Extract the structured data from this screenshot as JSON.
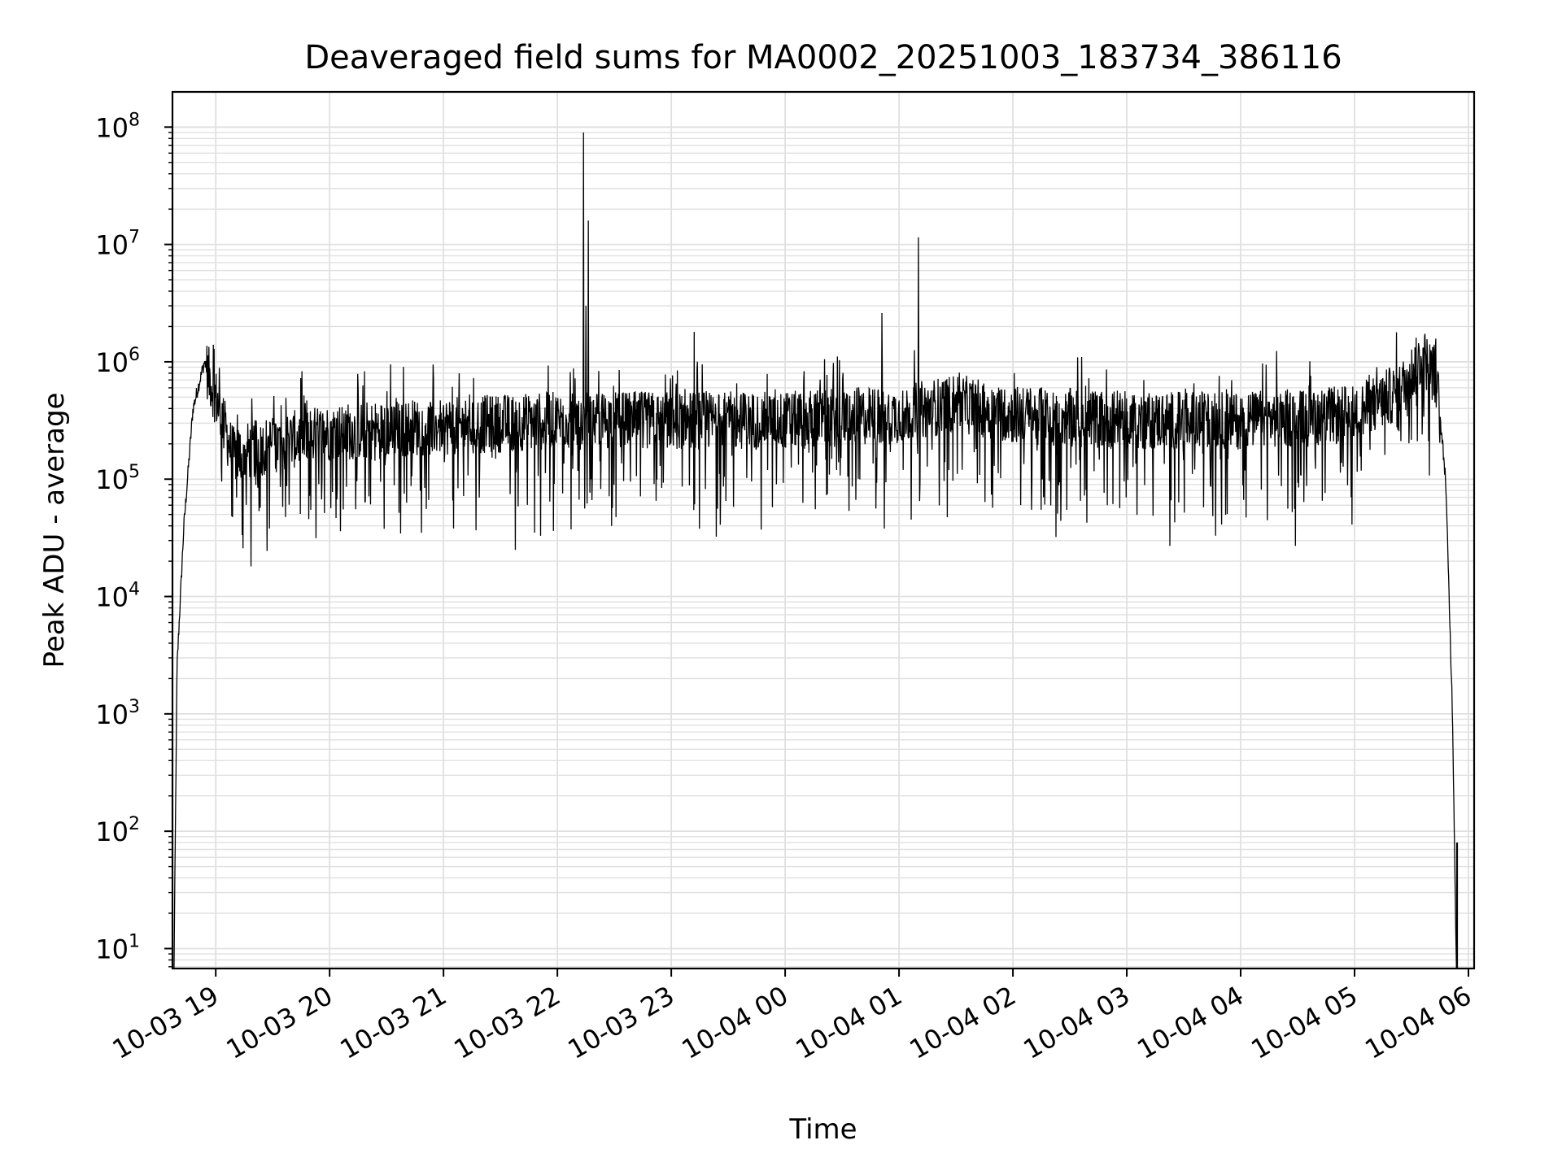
{
  "chart_data": {
    "type": "line",
    "title": "Deaveraged field sums for MA0002_20251003_183734_386116",
    "xlabel": "Time",
    "ylabel": "Peak ADU - average",
    "yscale": "log",
    "grid": true,
    "line_color": "#000000",
    "grid_color": "#e0e0e0",
    "x_tick_labels": [
      "10-03 19",
      "10-03 20",
      "10-03 21",
      "10-03 22",
      "10-03 23",
      "10-04 00",
      "10-04 01",
      "10-04 02",
      "10-04 03",
      "10-04 04",
      "10-04 05",
      "10-04 06"
    ],
    "x_tick_hours": [
      19,
      20,
      21,
      22,
      23,
      24,
      25,
      26,
      27,
      28,
      29,
      30
    ],
    "xlim_hours": [
      18.62,
      30.05
    ],
    "y_ticks": [
      {
        "exp": 1,
        "base": "10",
        "sup": "1"
      },
      {
        "exp": 2,
        "base": "10",
        "sup": "2"
      },
      {
        "exp": 3,
        "base": "10",
        "sup": "3"
      },
      {
        "exp": 4,
        "base": "10",
        "sup": "4"
      },
      {
        "exp": 5,
        "base": "10",
        "sup": "5"
      },
      {
        "exp": 6,
        "base": "10",
        "sup": "6"
      },
      {
        "exp": 7,
        "base": "10",
        "sup": "7"
      },
      {
        "exp": 8,
        "base": "10",
        "sup": "8"
      }
    ],
    "ylim_log10": [
      0.83,
      8.3
    ],
    "series": [
      {
        "name": "Peak ADU - average",
        "start_hour": 18.63,
        "end_hour": 29.9,
        "ramp_up_end_hour": 18.92,
        "ramp_down_start_hour": 29.75,
        "baseline_log10": [
          [
            18.63,
            0.5
          ],
          [
            18.66,
            3.4
          ],
          [
            18.72,
            4.6
          ],
          [
            18.8,
            5.6
          ],
          [
            18.9,
            6.0
          ],
          [
            19.0,
            5.7
          ],
          [
            19.15,
            5.2
          ],
          [
            19.5,
            5.3
          ],
          [
            20.0,
            5.4
          ],
          [
            21.0,
            5.45
          ],
          [
            22.0,
            5.5
          ],
          [
            23.0,
            5.5
          ],
          [
            24.0,
            5.5
          ],
          [
            25.0,
            5.55
          ],
          [
            25.5,
            5.65
          ],
          [
            26.0,
            5.55
          ],
          [
            27.0,
            5.5
          ],
          [
            28.0,
            5.5
          ],
          [
            29.0,
            5.55
          ],
          [
            29.4,
            5.75
          ],
          [
            29.6,
            6.05
          ],
          [
            29.72,
            5.85
          ],
          [
            29.8,
            5.0
          ],
          [
            29.86,
            3.0
          ],
          [
            29.9,
            0.5
          ]
        ],
        "spikes": [
          {
            "hour": 22.23,
            "value": 90000000
          },
          {
            "hour": 22.27,
            "value": 16000000
          },
          {
            "hour": 22.25,
            "value": 3000000
          },
          {
            "hour": 24.85,
            "value": 2600000
          },
          {
            "hour": 25.17,
            "value": 11500000
          },
          {
            "hour": 23.2,
            "value": 1800000
          },
          {
            "hour": 18.98,
            "value": 1400000
          },
          {
            "hour": 29.7,
            "value": 1400000
          }
        ],
        "dips": [
          {
            "hour": 21.63,
            "value": 25000
          },
          {
            "hour": 21.8,
            "value": 35000
          },
          {
            "hour": 27.38,
            "value": 27000
          },
          {
            "hour": 27.78,
            "value": 33000
          },
          {
            "hour": 28.48,
            "value": 27000
          },
          {
            "hour": 24.87,
            "value": 38000
          },
          {
            "hour": 19.47,
            "value": 38000
          }
        ],
        "tail_spike": {
          "hour": 29.9,
          "value": 80
        }
      }
    ]
  }
}
